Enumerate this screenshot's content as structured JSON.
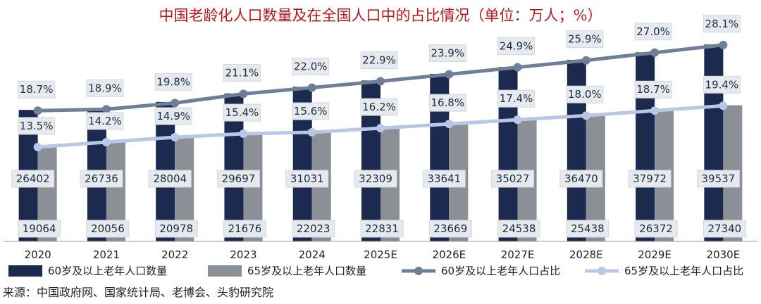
{
  "chart_data": {
    "type": "bar",
    "title": "中国老龄化人口数量及在全国人口中的占比情况（单位：万人；%）",
    "categories": [
      "2020",
      "2021",
      "2022",
      "2023",
      "2024",
      "2025E",
      "2026E",
      "2027E",
      "2028E",
      "2029E",
      "2030E"
    ],
    "series": [
      {
        "name": "60岁及以上老年人口数量",
        "kind": "bar",
        "color": "#1b2a4e",
        "values": [
          26402,
          26736,
          28004,
          29697,
          31031,
          32309,
          33641,
          35027,
          36470,
          37972,
          39537
        ]
      },
      {
        "name": "65岁及以上老年人口数量",
        "kind": "bar",
        "color": "#8a9095",
        "values": [
          19064,
          20056,
          20978,
          21676,
          22023,
          22831,
          23669,
          24538,
          25438,
          26372,
          27340
        ]
      },
      {
        "name": "60岁及以上老年人口占比",
        "kind": "line",
        "color": "#6f7f98",
        "values": [
          18.7,
          18.9,
          19.8,
          21.1,
          22.0,
          22.9,
          23.9,
          24.9,
          25.9,
          27.0,
          28.1
        ]
      },
      {
        "name": "65岁及以上老年人口占比",
        "kind": "line",
        "color": "#b9c7e6",
        "values": [
          13.5,
          14.2,
          14.9,
          15.4,
          15.6,
          16.2,
          16.8,
          17.4,
          18.0,
          18.7,
          19.4
        ]
      }
    ],
    "bar_ylim": [
      0,
      40000
    ],
    "line_ylim": [
      0,
      30
    ],
    "legend_position": "bottom"
  },
  "source": "来源：中国政府网、国家统计局、老博会、头豹研究院"
}
